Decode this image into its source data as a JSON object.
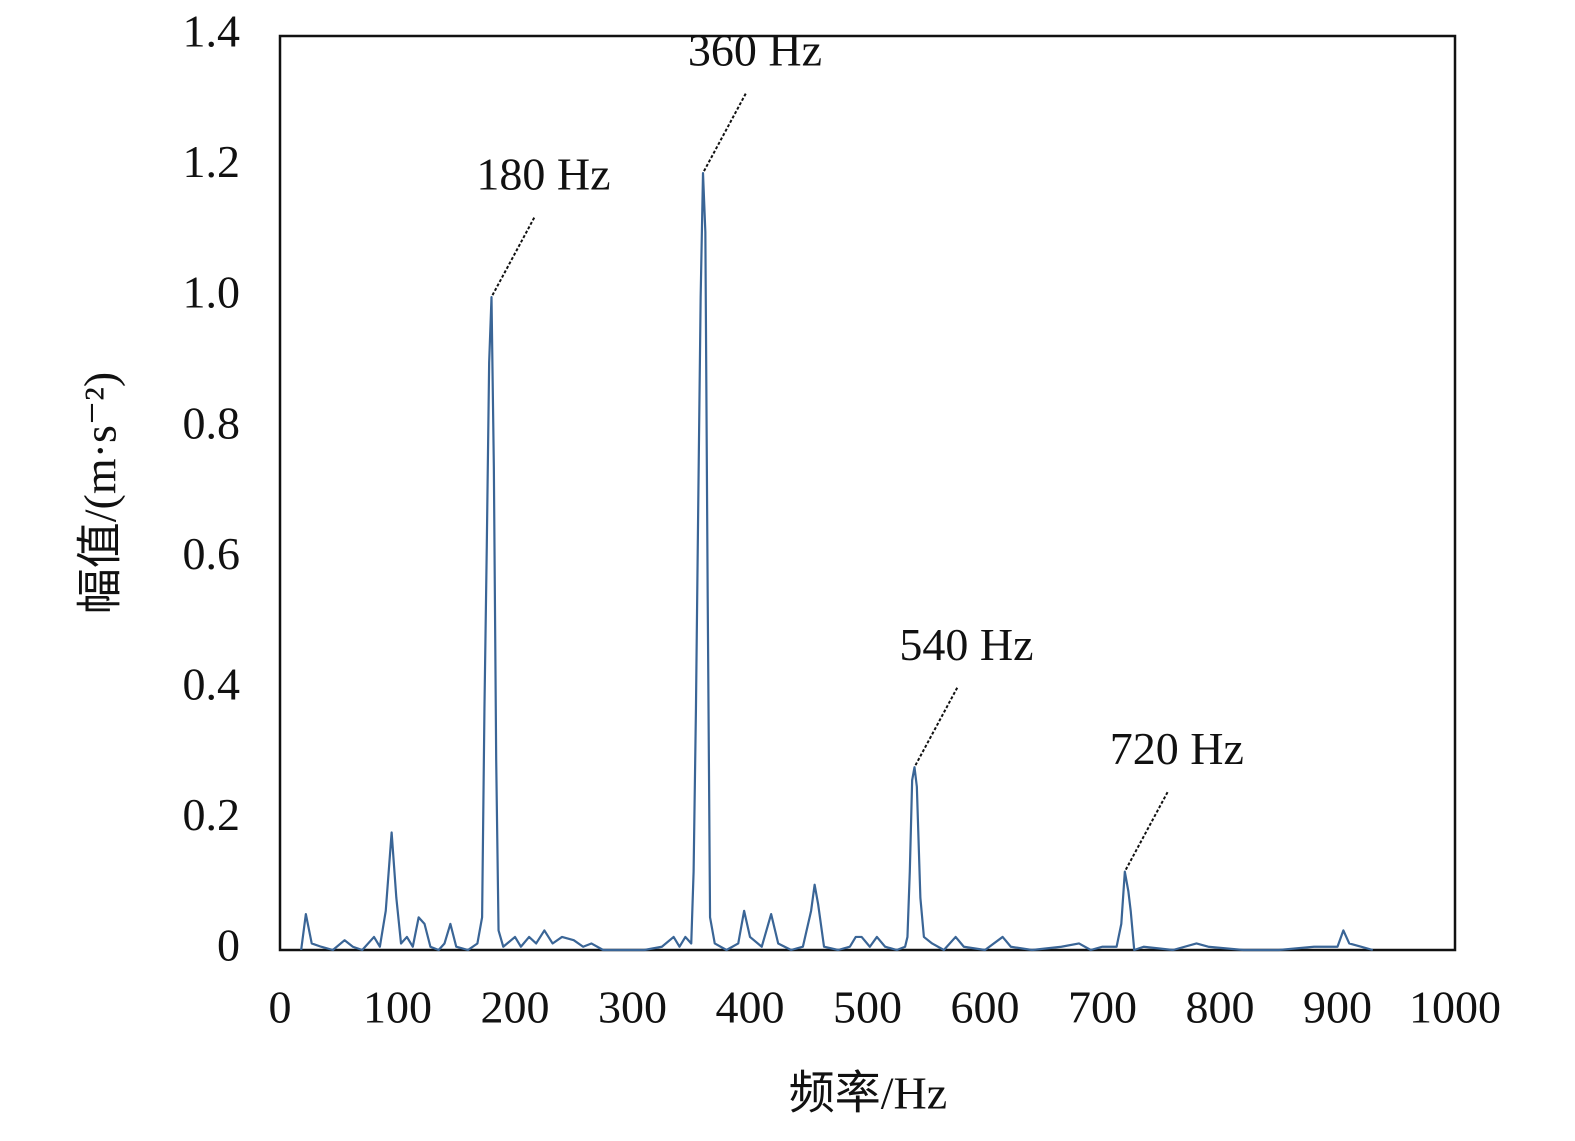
{
  "chart_data": {
    "type": "line",
    "xlabel": "频率/Hz",
    "ylabel": "幅值/(m·s⁻²)",
    "xlim": [
      0,
      1000
    ],
    "ylim": [
      0,
      1.4
    ],
    "xticks": [
      0,
      100,
      200,
      300,
      400,
      500,
      600,
      700,
      800,
      900,
      1000
    ],
    "yticks": [
      0,
      0.2,
      0.4,
      0.6,
      0.8,
      {
        "value": 1,
        "label": "1.0"
      },
      1.2,
      1.4
    ],
    "grid": false,
    "x": [
      18,
      22,
      27,
      35,
      45,
      55,
      62,
      70,
      80,
      85,
      90,
      95,
      99,
      103,
      108,
      113,
      118,
      123,
      128,
      135,
      140,
      145,
      150,
      160,
      168,
      172,
      174,
      176,
      178,
      180,
      182,
      184,
      186,
      190,
      200,
      205,
      212,
      218,
      225,
      232,
      240,
      250,
      258,
      265,
      275,
      290,
      310,
      325,
      335,
      340,
      345,
      350,
      352,
      354,
      356,
      358,
      360,
      362,
      364,
      366,
      370,
      380,
      390,
      395,
      400,
      410,
      418,
      424,
      435,
      445,
      452,
      455,
      458,
      463,
      475,
      485,
      490,
      495,
      502,
      508,
      515,
      525,
      532,
      534,
      536,
      538,
      540,
      542,
      545,
      548,
      555,
      565,
      575,
      582,
      600,
      615,
      622,
      640,
      665,
      680,
      690,
      700,
      712,
      716,
      719,
      722,
      724,
      727,
      735,
      760,
      780,
      790,
      820,
      850,
      880,
      900,
      905,
      910,
      920,
      930
    ],
    "series": [
      {
        "name": "spectrum",
        "color": "#3a6596",
        "values": [
          0,
          0.055,
          0.01,
          0.005,
          0,
          0.015,
          0.005,
          0,
          0.02,
          0.005,
          0.06,
          0.18,
          0.08,
          0.01,
          0.02,
          0.005,
          0.05,
          0.04,
          0.005,
          0,
          0.01,
          0.04,
          0.005,
          0,
          0.01,
          0.05,
          0.37,
          0.62,
          0.9,
          1.0,
          0.74,
          0.29,
          0.03,
          0.005,
          0.02,
          0.005,
          0.02,
          0.01,
          0.03,
          0.01,
          0.02,
          0.015,
          0.005,
          0.01,
          0,
          0,
          0,
          0.005,
          0.02,
          0.005,
          0.02,
          0.01,
          0.12,
          0.37,
          0.69,
          1.0,
          1.19,
          1.1,
          0.54,
          0.05,
          0.01,
          0,
          0.01,
          0.06,
          0.02,
          0.005,
          0.055,
          0.01,
          0,
          0.005,
          0.06,
          0.1,
          0.07,
          0.005,
          0,
          0.005,
          0.02,
          0.02,
          0.005,
          0.02,
          0.005,
          0,
          0.005,
          0.02,
          0.12,
          0.26,
          0.28,
          0.25,
          0.08,
          0.02,
          0.01,
          0,
          0.02,
          0.005,
          0,
          0.02,
          0.005,
          0,
          0.005,
          0.01,
          0,
          0.005,
          0.005,
          0.04,
          0.12,
          0.09,
          0.06,
          0,
          0.005,
          0,
          0.01,
          0.005,
          0,
          0,
          0.005,
          0.005,
          0.03,
          0.01,
          0.005,
          0
        ]
      }
    ],
    "annotations": [
      {
        "text": "180 Hz",
        "x": 180,
        "y": 1.0
      },
      {
        "text": "360 Hz",
        "x": 360,
        "y": 1.19
      },
      {
        "text": "540 Hz",
        "x": 540,
        "y": 0.28
      },
      {
        "text": "720 Hz",
        "x": 719,
        "y": 0.12
      }
    ]
  }
}
